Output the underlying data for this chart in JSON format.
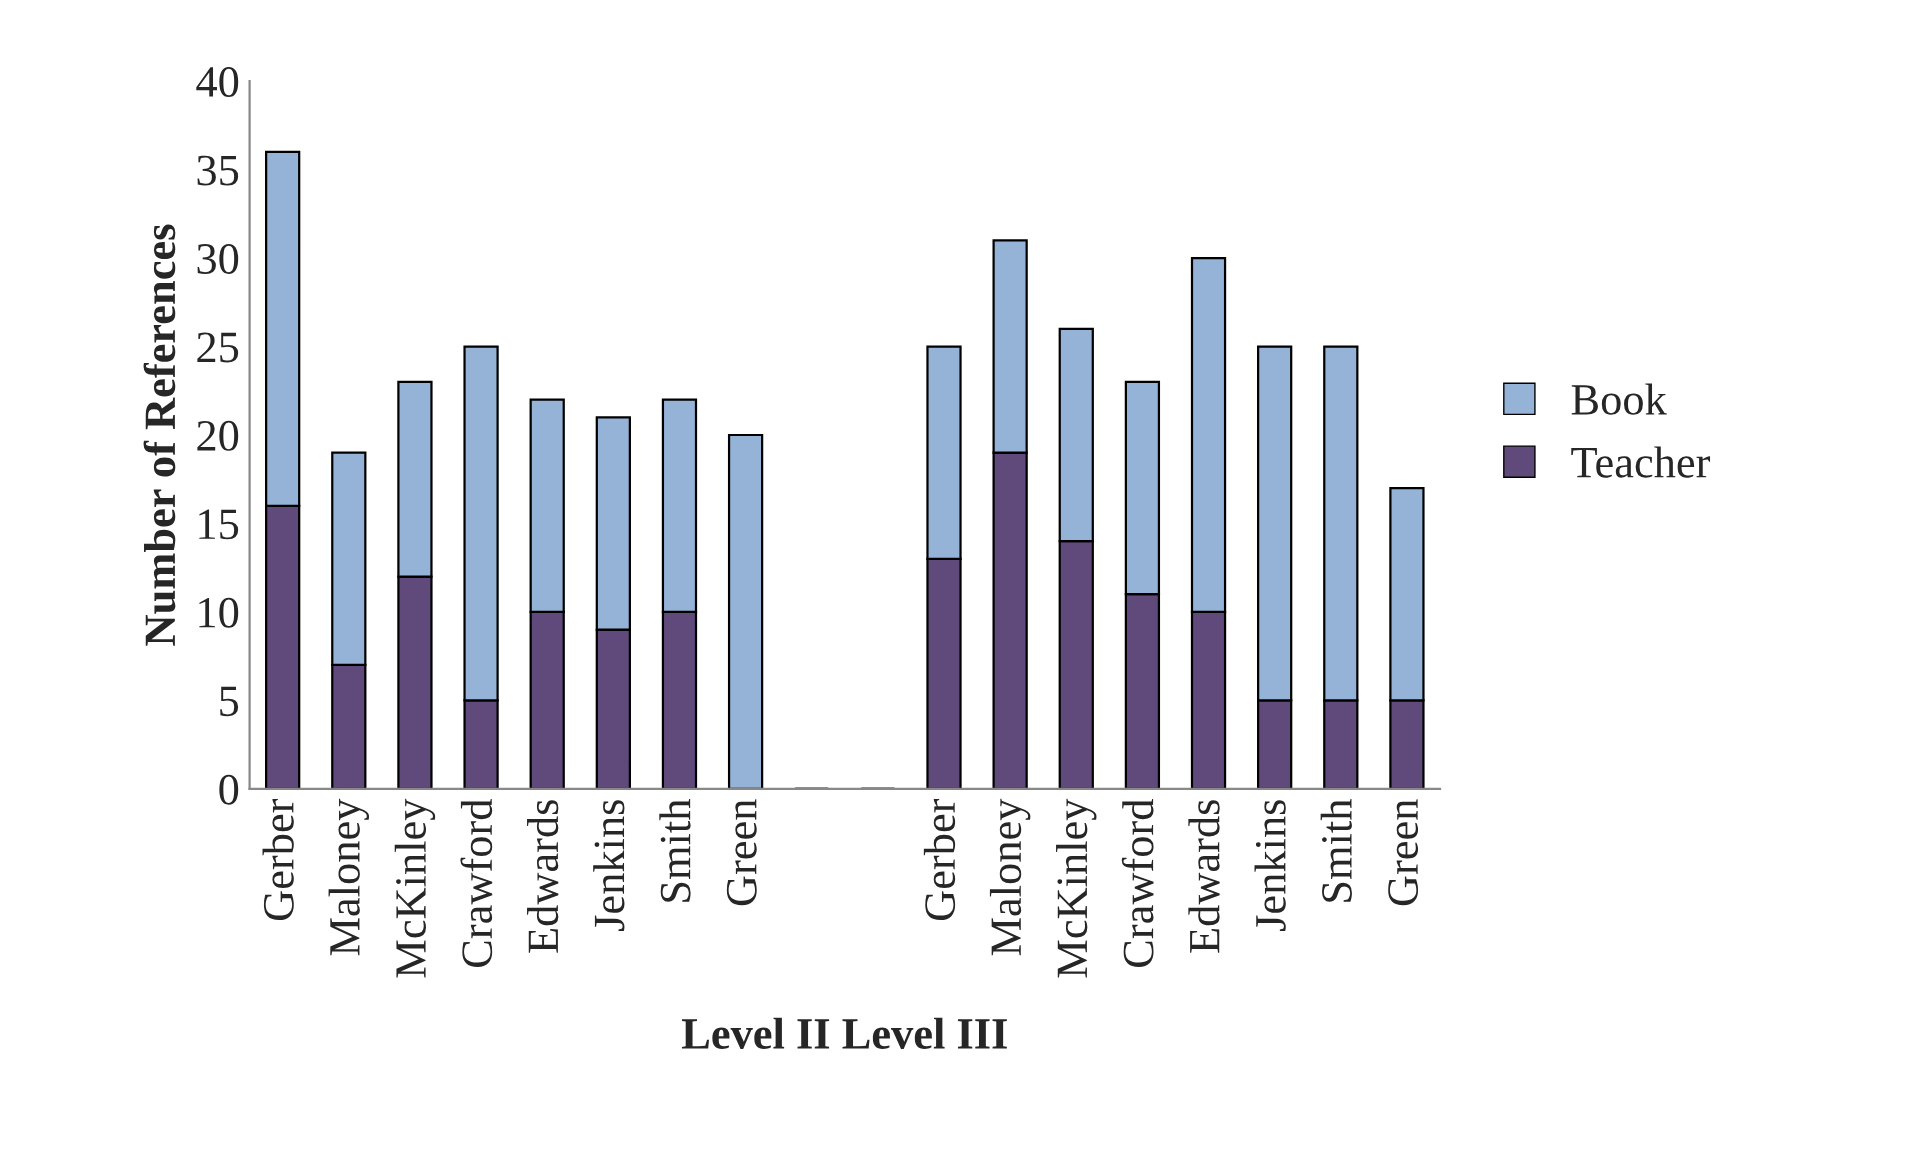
{
  "chart_data": {
    "type": "bar",
    "stacked": true,
    "categories": [
      "Gerber",
      "Maloney",
      "McKinley",
      "Crawford",
      "Edwards",
      "Jenkins",
      "Smith",
      "Green",
      null,
      null,
      "Gerber",
      "Maloney",
      "McKinley",
      "Crawford",
      "Edwards",
      "Jenkins",
      "Smith",
      "Green"
    ],
    "series": [
      {
        "name": "Teacher",
        "color": "#604a7b",
        "values": [
          16,
          7,
          12,
          5,
          10,
          9,
          10,
          0,
          null,
          null,
          13,
          19,
          14,
          11,
          10,
          5,
          5,
          5
        ]
      },
      {
        "name": "Book",
        "color": "#95b3d7",
        "values": [
          20,
          12,
          11,
          20,
          12,
          12,
          12,
          20,
          null,
          null,
          12,
          12,
          12,
          12,
          20,
          20,
          20,
          12
        ]
      }
    ],
    "xlabel": "Level II Level III",
    "ylabel": "Number of References",
    "ylim": [
      0,
      40
    ],
    "yticks": [
      0,
      5,
      10,
      15,
      20,
      25,
      30,
      35,
      40
    ],
    "grid": false,
    "legend": "right"
  }
}
